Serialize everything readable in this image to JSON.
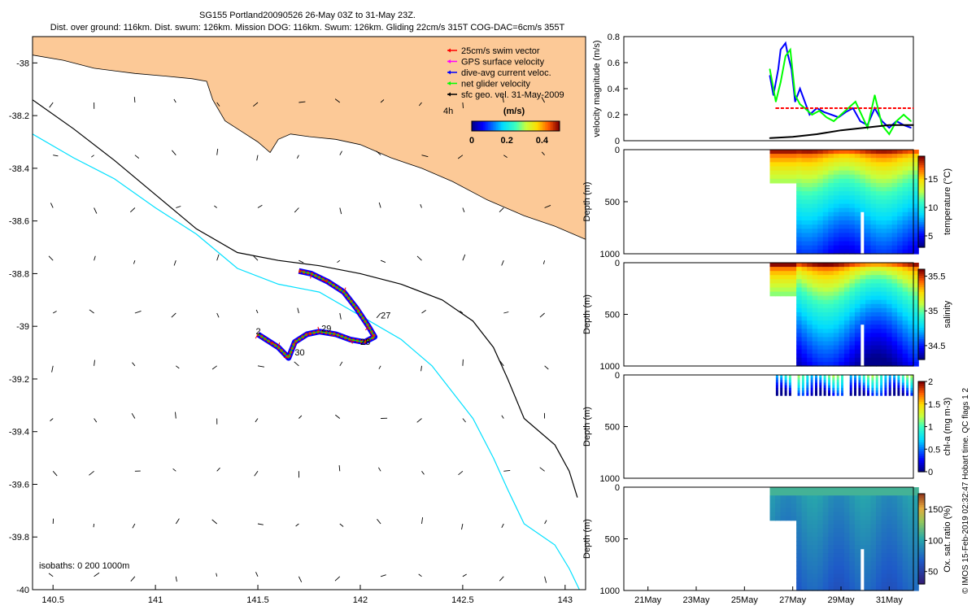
{
  "header": {
    "title_line1": "SG155 Portland20090526 26-May 03Z to 31-May 23Z.",
    "title_line2": "Dist. over ground: 116km. Dist. swum: 126km. Mission DOG: 116km. Swum: 126km. Gliding 22cm/s 315T COG-DAC=6cm/s 355T"
  },
  "side_note": "© IMOS 15-Feb-2019 02:32:47 Hobart time. QC flags 1 2",
  "colors": {
    "land": "#fcc997",
    "isobath_200": "#000000",
    "isobath_1000": "#00e0ff",
    "track_swim": "#ff0000",
    "track_gps": "#ff00ff",
    "track_dac": "#0000ff",
    "track_net": "#00ff00",
    "geo_vel": "#000000"
  },
  "chart_data": [
    {
      "id": "map",
      "type": "scatter",
      "xlim": [
        140.4,
        143.1
      ],
      "ylim": [
        -40.0,
        -37.9
      ],
      "xticks": [
        140.5,
        141,
        141.5,
        142,
        142.5,
        143
      ],
      "xtick_labels": [
        "140.5",
        "141",
        "141.5",
        "142",
        "142.5",
        "143"
      ],
      "yticks": [
        -38,
        -38.2,
        -38.4,
        -38.6,
        -38.8,
        -39,
        -39.2,
        -39.4,
        -39.6,
        -39.8,
        -40
      ],
      "ytick_labels": [
        "-38",
        "-38.2",
        "-38.4",
        "-38.6",
        "-38.8",
        "-39",
        "-39.2",
        "-39.4",
        "-39.6",
        "-39.8",
        "-40"
      ],
      "legend": [
        {
          "label": "25cm/s swim vector",
          "color": "#ff0000"
        },
        {
          "label": "GPS surface velocity",
          "color": "#ff00ff"
        },
        {
          "label": "dive-avg current veloc.",
          "color": "#0000ff"
        },
        {
          "label": "net glider velocity",
          "color": "#00ff00"
        },
        {
          "label": "sfc geo. vel. 31-May-2009",
          "color": "#000000"
        }
      ],
      "scale_label": "4h",
      "colorbar": {
        "label": "(m/s)",
        "ticks": [
          "0",
          "0.2",
          "0.4"
        ],
        "range": [
          0,
          0.5
        ]
      },
      "isobaths_note": "isobaths: 0   200   1000m",
      "coastline": [
        [
          140.4,
          -37.9
        ],
        [
          143.1,
          -37.9
        ],
        [
          143.1,
          -38.67
        ],
        [
          142.95,
          -38.62
        ],
        [
          142.8,
          -38.58
        ],
        [
          142.62,
          -38.52
        ],
        [
          142.45,
          -38.45
        ],
        [
          142.3,
          -38.4
        ],
        [
          142.15,
          -38.36
        ],
        [
          142.0,
          -38.31
        ],
        [
          141.88,
          -38.29
        ],
        [
          141.75,
          -38.28
        ],
        [
          141.66,
          -38.27
        ],
        [
          141.6,
          -38.29
        ],
        [
          141.56,
          -38.34
        ],
        [
          141.5,
          -38.3
        ],
        [
          141.42,
          -38.26
        ],
        [
          141.34,
          -38.22
        ],
        [
          141.28,
          -38.14
        ],
        [
          141.25,
          -38.07
        ],
        [
          141.18,
          -38.06
        ],
        [
          141.05,
          -38.05
        ],
        [
          140.9,
          -38.04
        ],
        [
          140.8,
          -38.03
        ],
        [
          140.7,
          -38.02
        ],
        [
          140.55,
          -37.99
        ],
        [
          140.4,
          -37.97
        ]
      ],
      "isobath_200": [
        [
          140.4,
          -38.14
        ],
        [
          140.6,
          -38.25
        ],
        [
          140.8,
          -38.37
        ],
        [
          141.0,
          -38.5
        ],
        [
          141.2,
          -38.63
        ],
        [
          141.4,
          -38.72
        ],
        [
          141.6,
          -38.75
        ],
        [
          141.8,
          -38.77
        ],
        [
          142.0,
          -38.8
        ],
        [
          142.2,
          -38.84
        ],
        [
          142.4,
          -38.9
        ],
        [
          142.55,
          -38.98
        ],
        [
          142.65,
          -39.08
        ],
        [
          142.72,
          -39.2
        ],
        [
          142.8,
          -39.35
        ],
        [
          142.95,
          -39.45
        ],
        [
          143.02,
          -39.55
        ],
        [
          143.06,
          -39.65
        ]
      ],
      "isobath_1000": [
        [
          140.4,
          -38.27
        ],
        [
          140.6,
          -38.36
        ],
        [
          140.8,
          -38.44
        ],
        [
          141.0,
          -38.55
        ],
        [
          141.2,
          -38.65
        ],
        [
          141.4,
          -38.78
        ],
        [
          141.6,
          -38.84
        ],
        [
          141.8,
          -38.87
        ],
        [
          142.0,
          -38.96
        ],
        [
          142.2,
          -39.05
        ],
        [
          142.35,
          -39.15
        ],
        [
          142.45,
          -39.25
        ],
        [
          142.55,
          -39.35
        ],
        [
          142.65,
          -39.5
        ],
        [
          142.72,
          -39.62
        ],
        [
          142.8,
          -39.75
        ],
        [
          142.95,
          -39.83
        ],
        [
          143.02,
          -39.92
        ],
        [
          143.07,
          -40.0
        ]
      ],
      "track": [
        [
          141.7,
          -38.79
        ],
        [
          141.76,
          -38.8
        ],
        [
          141.84,
          -38.83
        ],
        [
          141.92,
          -38.87
        ],
        [
          141.98,
          -38.93
        ],
        [
          142.04,
          -39.0
        ],
        [
          142.07,
          -39.04
        ],
        [
          142.02,
          -39.06
        ],
        [
          141.95,
          -39.05
        ],
        [
          141.88,
          -39.03
        ],
        [
          141.8,
          -39.02
        ],
        [
          141.74,
          -39.03
        ],
        [
          141.68,
          -39.06
        ],
        [
          141.65,
          -39.12
        ],
        [
          141.6,
          -39.08
        ],
        [
          141.56,
          -39.06
        ],
        [
          141.5,
          -39.03
        ]
      ],
      "day_labels": [
        {
          "text": "27",
          "x": 142.1,
          "y": -38.97
        },
        {
          "text": "29",
          "x": 141.81,
          "y": -39.02
        },
        {
          "text": "28",
          "x": 142.0,
          "y": -39.07
        },
        {
          "text": "30",
          "x": 141.68,
          "y": -39.11
        },
        {
          "text": "2",
          "x": 141.49,
          "y": -39.03
        }
      ]
    },
    {
      "id": "velocity",
      "type": "line",
      "ylabel": "velocity magnitude (m/s)",
      "ylim": [
        0,
        0.8
      ],
      "yticks": [
        "0",
        "0.2",
        "0.4",
        "0.6",
        "0.8"
      ],
      "xlim": [
        20,
        32
      ],
      "series": [
        {
          "color": "#0000ff",
          "x": [
            26.05,
            26.2,
            26.4,
            26.5,
            26.7,
            26.8,
            26.95,
            27.1,
            27.3,
            27.5,
            27.7,
            28.0,
            28.3,
            28.6,
            28.9,
            29.2,
            29.5,
            29.8,
            30.1,
            30.4,
            30.7,
            31.0,
            31.3,
            31.6,
            31.9
          ],
          "y": [
            0.5,
            0.35,
            0.55,
            0.7,
            0.75,
            0.66,
            0.55,
            0.3,
            0.4,
            0.3,
            0.2,
            0.25,
            0.22,
            0.2,
            0.18,
            0.22,
            0.25,
            0.15,
            0.12,
            0.25,
            0.15,
            0.1,
            0.15,
            0.12,
            0.1
          ]
        },
        {
          "color": "#00ff00",
          "x": [
            26.05,
            26.3,
            26.5,
            26.7,
            26.9,
            27.1,
            27.3,
            27.5,
            27.8,
            28.1,
            28.4,
            28.7,
            29.0,
            29.3,
            29.6,
            29.9,
            30.1,
            30.4,
            30.7,
            31.0,
            31.3,
            31.6,
            31.9
          ],
          "y": [
            0.55,
            0.3,
            0.45,
            0.65,
            0.7,
            0.35,
            0.28,
            0.25,
            0.2,
            0.23,
            0.18,
            0.15,
            0.2,
            0.25,
            0.3,
            0.18,
            0.1,
            0.35,
            0.12,
            0.05,
            0.15,
            0.2,
            0.15
          ]
        },
        {
          "color": "#ff0000",
          "x": [
            26.3,
            32.0
          ],
          "y": [
            0.25,
            0.25
          ]
        },
        {
          "color": "#000000",
          "x": [
            26.05,
            27.0,
            28.0,
            29.0,
            30.0,
            31.0,
            32.0
          ],
          "y": [
            0.02,
            0.03,
            0.05,
            0.08,
            0.1,
            0.12,
            0.12
          ]
        }
      ]
    },
    {
      "id": "temperature",
      "type": "heatmap",
      "ylabel": "Depth (m)",
      "yticks": [
        "0",
        "500",
        "1000"
      ],
      "colorbar_label": "temperature (°C)",
      "colorbar_ticks": [
        "5",
        "10",
        "15"
      ],
      "range": [
        3,
        19
      ]
    },
    {
      "id": "salinity",
      "type": "heatmap",
      "ylabel": "Depth (m)",
      "yticks": [
        "0",
        "500",
        "1000"
      ],
      "colorbar_label": "salinity",
      "colorbar_ticks": [
        "34.5",
        "35",
        "35.5"
      ],
      "range": [
        34.3,
        35.6
      ]
    },
    {
      "id": "chla",
      "type": "heatmap",
      "ylabel": "Depth (m)",
      "yticks": [
        "0",
        "500",
        "1000"
      ],
      "colorbar_label": "chl-a (mg m-3)",
      "colorbar_ticks": [
        "0",
        "0.5",
        "1",
        "1.5",
        "2"
      ],
      "range": [
        0,
        2
      ]
    },
    {
      "id": "oxygen",
      "type": "heatmap",
      "ylabel": "Depth (m)",
      "yticks": [
        "0",
        "500",
        "1000"
      ],
      "colorbar_label": "Ox. sat. ratio (%)",
      "colorbar_ticks": [
        "50",
        "100",
        "150"
      ],
      "range": [
        30,
        175
      ],
      "xtick_labels": [
        "21May",
        "23May",
        "25May",
        "27May",
        "29May",
        "31May"
      ],
      "xticks": [
        21,
        23,
        25,
        27,
        29,
        31
      ]
    }
  ]
}
